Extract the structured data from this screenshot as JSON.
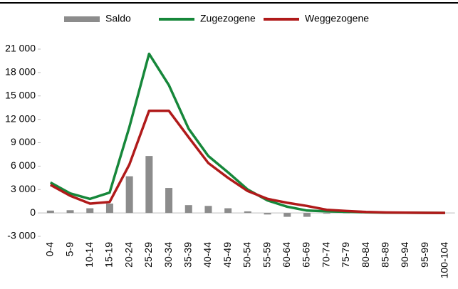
{
  "chart_data": {
    "type": "bar_line",
    "categories": [
      "0-4",
      "5-9",
      "10-14",
      "15-19",
      "20-24",
      "25-29",
      "30-34",
      "35-39",
      "40-44",
      "45-49",
      "50-54",
      "55-59",
      "60-64",
      "65-69",
      "70-74",
      "75-79",
      "80-84",
      "85-89",
      "90-94",
      "95-99",
      "100-104"
    ],
    "series": [
      {
        "name": "Saldo",
        "type": "bar",
        "color": "#8c8c8c",
        "values": [
          300,
          350,
          600,
          1200,
          4700,
          7300,
          3200,
          1000,
          900,
          600,
          200,
          -200,
          -500,
          -500,
          -100,
          -50,
          -20,
          -10,
          -10,
          0,
          0
        ]
      },
      {
        "name": "Zugezogene",
        "type": "line",
        "color": "#16873a",
        "values": [
          3900,
          2500,
          1800,
          2600,
          11000,
          20400,
          16400,
          10800,
          7300,
          5200,
          3000,
          1600,
          800,
          300,
          200,
          150,
          80,
          40,
          20,
          10,
          5
        ]
      },
      {
        "name": "Weggezogene",
        "type": "line",
        "color": "#b01a1a",
        "values": [
          3600,
          2200,
          1200,
          1400,
          6200,
          13100,
          13100,
          9700,
          6400,
          4500,
          2800,
          1800,
          1300,
          900,
          400,
          250,
          120,
          60,
          30,
          15,
          5
        ]
      }
    ],
    "ylim": [
      -3000,
      21000
    ],
    "yticks": [
      {
        "value": -3000,
        "label": "-3 000"
      },
      0,
      {
        "value": 3000,
        "label": "3 000"
      },
      {
        "value": 6000,
        "label": "6 000"
      },
      {
        "value": 9000,
        "label": "9 000"
      },
      {
        "value": 12000,
        "label": "12 000"
      },
      {
        "value": 15000,
        "label": "15 000"
      },
      {
        "value": 18000,
        "label": "18 000"
      },
      {
        "value": 21000,
        "label": "21 000"
      }
    ],
    "legend": "top"
  }
}
